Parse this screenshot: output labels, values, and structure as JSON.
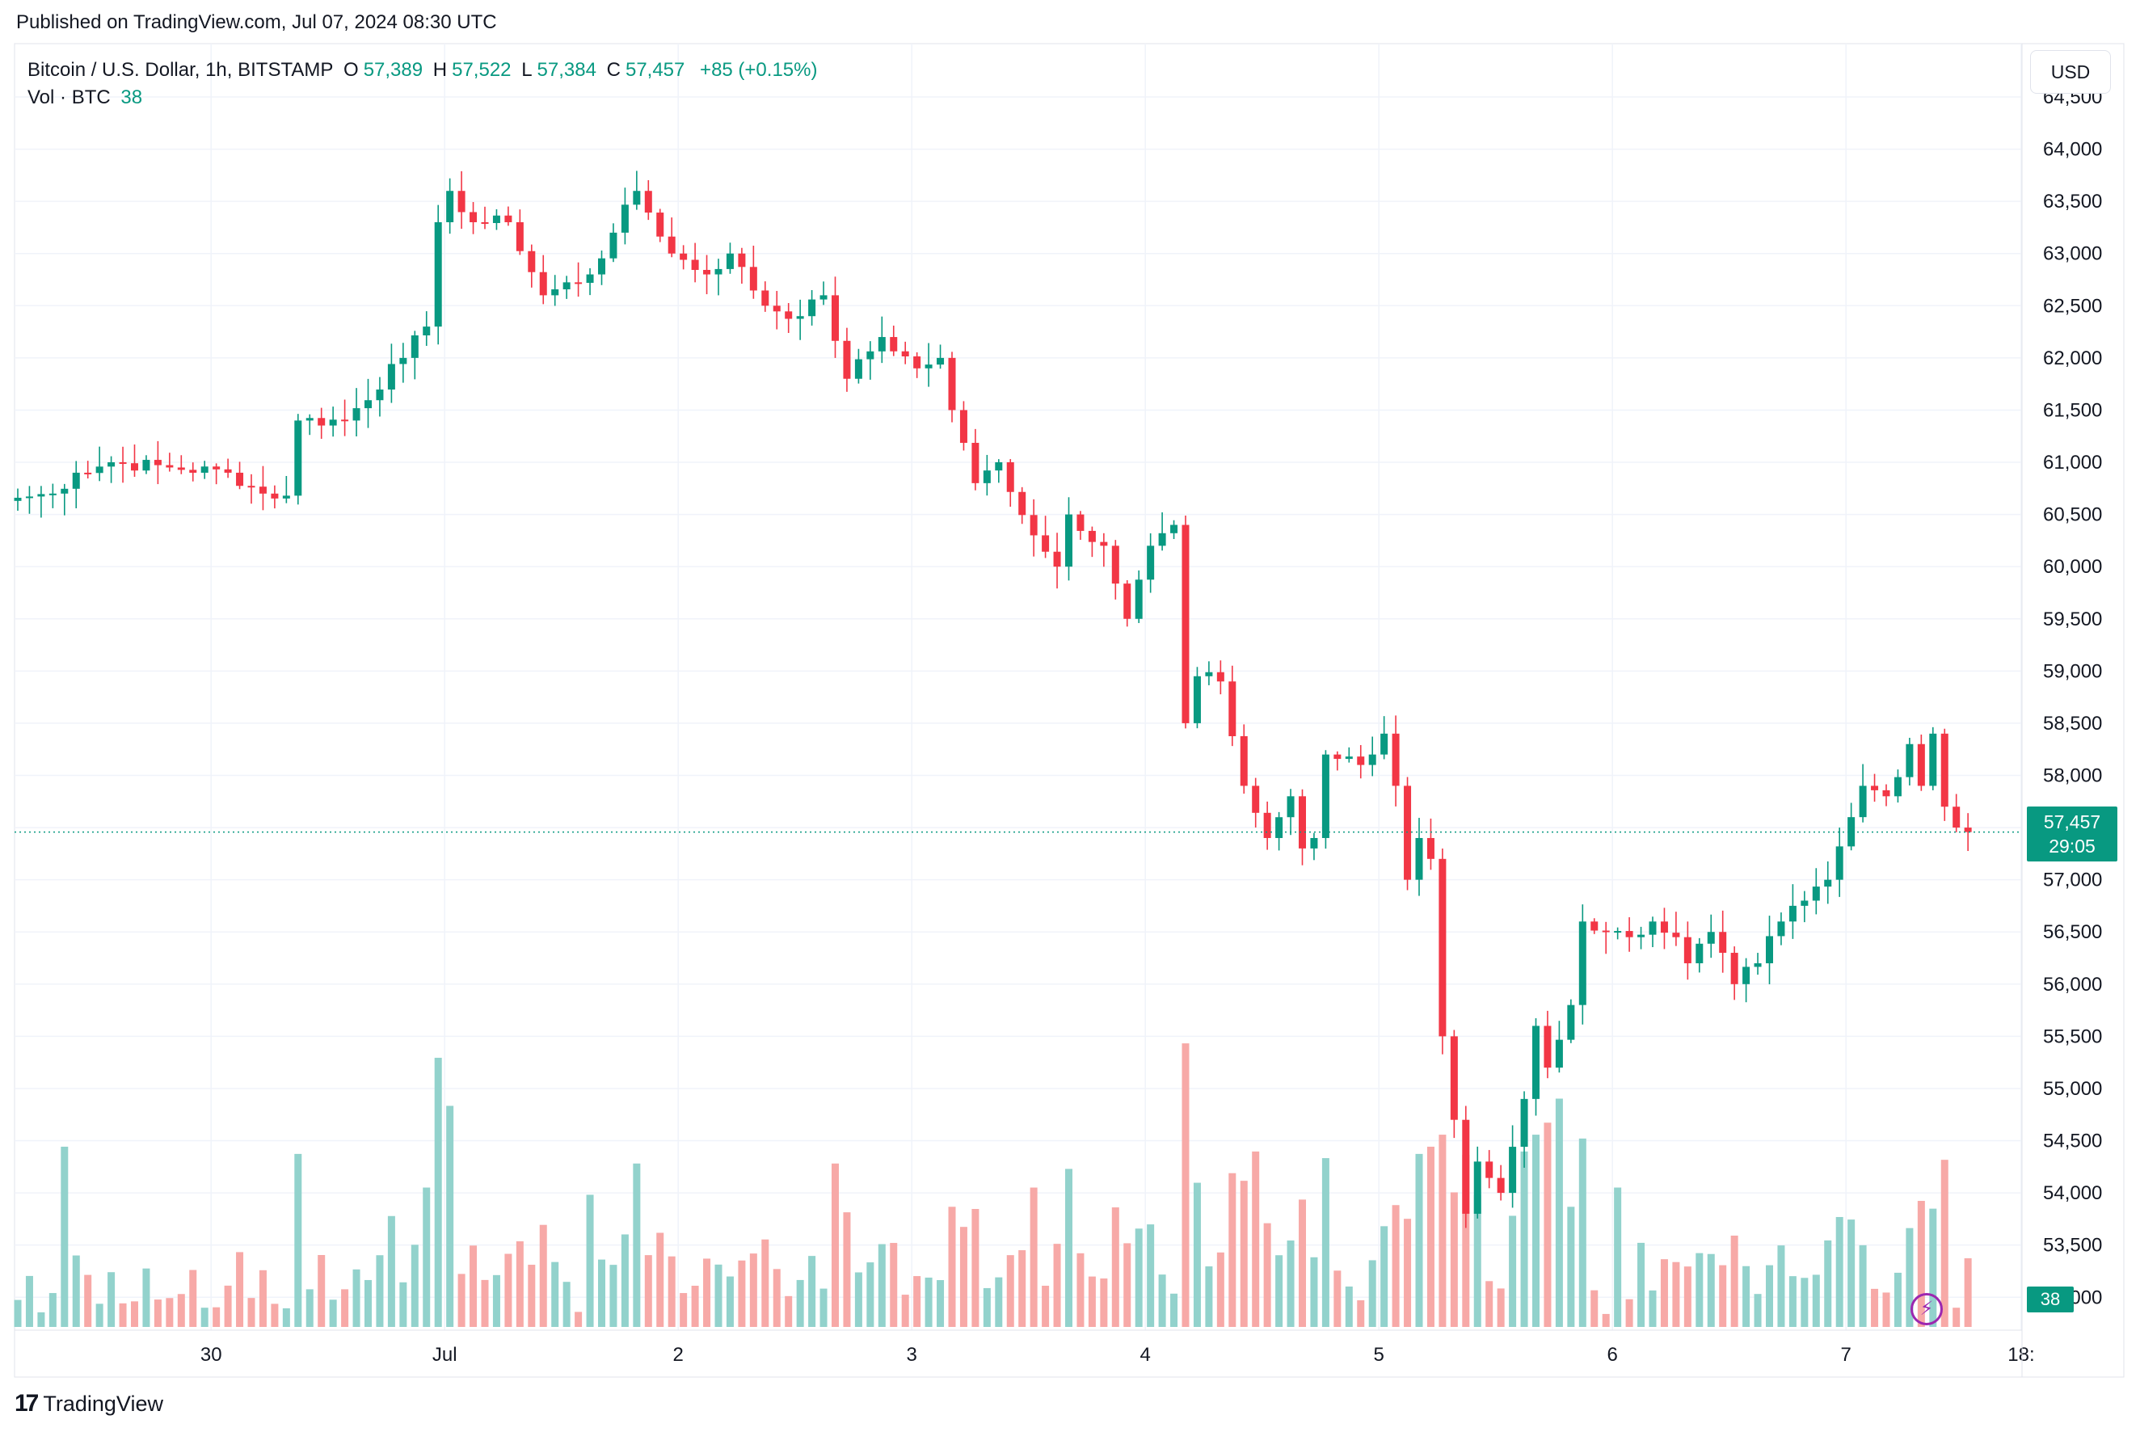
{
  "header": {
    "published": "Published on TradingView.com, Jul 07, 2024 08:30 UTC"
  },
  "legend": {
    "symbol": "Bitcoin / U.S. Dollar, 1h, BITSTAMP",
    "o_label": "O",
    "o_value": "57,389",
    "h_label": "H",
    "h_value": "57,522",
    "l_label": "L",
    "l_value": "57,384",
    "c_label": "C",
    "c_value": "57,457",
    "change": "+85 (+0.15%)",
    "vol_label": "Vol · BTC",
    "vol_value": "38"
  },
  "currency_button": "USD",
  "last_price": {
    "price": "57,457",
    "countdown": "29:05"
  },
  "volume_tag": "38",
  "footer": {
    "brand": "TradingView"
  },
  "colors": {
    "up": "#089981",
    "down": "#F23645",
    "up_vol": "#92D2CC",
    "down_vol": "#F7A9A7",
    "grid": "#F0F3FA"
  },
  "icons": {
    "alert": "lightning-bolt-icon",
    "logo": "tradingview-logo-icon"
  },
  "chart_data": {
    "type": "candlestick",
    "title": "Bitcoin / U.S. Dollar, 1h, BITSTAMP",
    "interval": "1h",
    "grid": true,
    "y_axis": {
      "side": "right",
      "ylim": [
        52700,
        64500
      ],
      "ticks": [
        53000,
        53500,
        54000,
        54500,
        55000,
        55500,
        56000,
        56500,
        57000,
        57500,
        58000,
        58500,
        59000,
        59500,
        60000,
        60500,
        61000,
        61500,
        62000,
        62500,
        63000,
        63500,
        64000,
        64500
      ],
      "tick_labels": [
        "53,000",
        "53,500",
        "54,000",
        "54,500",
        "55,000",
        "55,500",
        "56,000",
        "56,500",
        "57,000",
        "",
        "58,000",
        "58,500",
        "59,000",
        "59,500",
        "60,000",
        "60,500",
        "61,000",
        "61,500",
        "62,000",
        "62,500",
        "63,000",
        "63,500",
        "64,000",
        "64,500"
      ]
    },
    "x_axis": {
      "bar_range": [
        0,
        164
      ],
      "tick_bars": [
        16,
        36,
        56,
        76,
        96,
        116,
        136,
        156,
        171
      ],
      "tick_labels": [
        "30",
        "Jul",
        "2",
        "3",
        "4",
        "5",
        "6",
        "7",
        "18:"
      ]
    },
    "price_line": 57457,
    "volume_max": 11.5,
    "anchors": [
      {
        "bar": 0,
        "close": 60660
      },
      {
        "bar": 3,
        "close": 60700
      },
      {
        "bar": 5,
        "close": 60900
      },
      {
        "bar": 8,
        "close": 61000
      },
      {
        "bar": 13,
        "close": 60950
      },
      {
        "bar": 18,
        "close": 60900
      },
      {
        "bar": 21,
        "close": 60700
      },
      {
        "bar": 23,
        "close": 60680
      },
      {
        "bar": 24,
        "close": 61400
      },
      {
        "bar": 28,
        "close": 61400
      },
      {
        "bar": 33,
        "close": 62000
      },
      {
        "bar": 35,
        "close": 62300
      },
      {
        "bar": 36,
        "close": 63300
      },
      {
        "bar": 37,
        "close": 63600
      },
      {
        "bar": 39,
        "close": 63300
      },
      {
        "bar": 42,
        "close": 63300
      },
      {
        "bar": 45,
        "close": 62600
      },
      {
        "bar": 49,
        "close": 62800
      },
      {
        "bar": 51,
        "close": 63200
      },
      {
        "bar": 53,
        "close": 63600
      },
      {
        "bar": 56,
        "close": 63000
      },
      {
        "bar": 59,
        "close": 62800
      },
      {
        "bar": 61,
        "close": 63000
      },
      {
        "bar": 64,
        "close": 62500
      },
      {
        "bar": 67,
        "close": 62400
      },
      {
        "bar": 69,
        "close": 62600
      },
      {
        "bar": 71,
        "close": 61800
      },
      {
        "bar": 74,
        "close": 62200
      },
      {
        "bar": 77,
        "close": 61900
      },
      {
        "bar": 79,
        "close": 62000
      },
      {
        "bar": 80,
        "close": 61500
      },
      {
        "bar": 82,
        "close": 60800
      },
      {
        "bar": 84,
        "close": 61000
      },
      {
        "bar": 87,
        "close": 60300
      },
      {
        "bar": 89,
        "close": 60000
      },
      {
        "bar": 90,
        "close": 60500
      },
      {
        "bar": 93,
        "close": 60200
      },
      {
        "bar": 95,
        "close": 59500
      },
      {
        "bar": 97,
        "close": 60200
      },
      {
        "bar": 99,
        "close": 60400
      },
      {
        "bar": 100,
        "close": 58500
      },
      {
        "bar": 101,
        "close": 58950
      },
      {
        "bar": 103,
        "close": 58900
      },
      {
        "bar": 105,
        "close": 57900
      },
      {
        "bar": 107,
        "close": 57400
      },
      {
        "bar": 109,
        "close": 57800
      },
      {
        "bar": 110,
        "close": 57300
      },
      {
        "bar": 111,
        "close": 57400
      },
      {
        "bar": 112,
        "close": 58200
      },
      {
        "bar": 115,
        "close": 58100
      },
      {
        "bar": 116,
        "close": 58200
      },
      {
        "bar": 117,
        "close": 58400
      },
      {
        "bar": 118,
        "close": 57900
      },
      {
        "bar": 119,
        "close": 57000
      },
      {
        "bar": 120,
        "close": 57400
      },
      {
        "bar": 121,
        "close": 57200
      },
      {
        "bar": 122,
        "close": 55500
      },
      {
        "bar": 123,
        "close": 54700
      },
      {
        "bar": 124,
        "close": 53800
      },
      {
        "bar": 125,
        "close": 54300
      },
      {
        "bar": 127,
        "close": 54000
      },
      {
        "bar": 129,
        "close": 54900
      },
      {
        "bar": 130,
        "close": 55600
      },
      {
        "bar": 131,
        "close": 55200
      },
      {
        "bar": 133,
        "close": 55800
      },
      {
        "bar": 134,
        "close": 56600
      },
      {
        "bar": 136,
        "close": 56500
      },
      {
        "bar": 138,
        "close": 56450
      },
      {
        "bar": 140,
        "close": 56600
      },
      {
        "bar": 142,
        "close": 56450
      },
      {
        "bar": 143,
        "close": 56200
      },
      {
        "bar": 145,
        "close": 56500
      },
      {
        "bar": 147,
        "close": 56000
      },
      {
        "bar": 149,
        "close": 56200
      },
      {
        "bar": 151,
        "close": 56600
      },
      {
        "bar": 153,
        "close": 56800
      },
      {
        "bar": 155,
        "close": 57000
      },
      {
        "bar": 157,
        "close": 57600
      },
      {
        "bar": 158,
        "close": 57900
      },
      {
        "bar": 160,
        "close": 57800
      },
      {
        "bar": 162,
        "close": 58300
      },
      {
        "bar": 163,
        "close": 57900
      },
      {
        "bar": 164,
        "close": 58400
      },
      {
        "bar": 165,
        "close": 57700
      },
      {
        "bar": 166,
        "close": 57500
      },
      {
        "bar": 167,
        "close": 57457
      }
    ],
    "volume_bars": [
      {
        "bar": 4,
        "vol": 7.5
      },
      {
        "bar": 16,
        "vol": 0.8
      },
      {
        "bar": 24,
        "vol": 7.2
      },
      {
        "bar": 36,
        "vol": 11.2
      },
      {
        "bar": 37,
        "vol": 9.2
      },
      {
        "bar": 35,
        "vol": 5.8
      },
      {
        "bar": 49,
        "vol": 5.5
      },
      {
        "bar": 53,
        "vol": 6.8
      },
      {
        "bar": 70,
        "vol": 6.8
      },
      {
        "bar": 80,
        "vol": 5.0
      },
      {
        "bar": 87,
        "vol": 5.8
      },
      {
        "bar": 100,
        "vol": 11.8
      },
      {
        "bar": 101,
        "vol": 6.0
      },
      {
        "bar": 106,
        "vol": 7.3
      },
      {
        "bar": 110,
        "vol": 5.3
      },
      {
        "bar": 119,
        "vol": 4.5
      },
      {
        "bar": 120,
        "vol": 7.2
      },
      {
        "bar": 121,
        "vol": 7.5
      },
      {
        "bar": 122,
        "vol": 8.0
      },
      {
        "bar": 123,
        "vol": 5.6
      },
      {
        "bar": 125,
        "vol": 5.5
      },
      {
        "bar": 129,
        "vol": 7.3
      },
      {
        "bar": 130,
        "vol": 8.0
      },
      {
        "bar": 131,
        "vol": 8.5
      },
      {
        "bar": 132,
        "vol": 9.5
      },
      {
        "bar": 133,
        "vol": 5.0
      },
      {
        "bar": 137,
        "vol": 5.8
      },
      {
        "bar": 139,
        "vol": 3.5
      },
      {
        "bar": 147,
        "vol": 3.8
      },
      {
        "bar": 155,
        "vol": 3.6
      },
      {
        "bar": 158,
        "vol": 3.4
      },
      {
        "bar": 166,
        "vol": 0.8
      }
    ]
  }
}
